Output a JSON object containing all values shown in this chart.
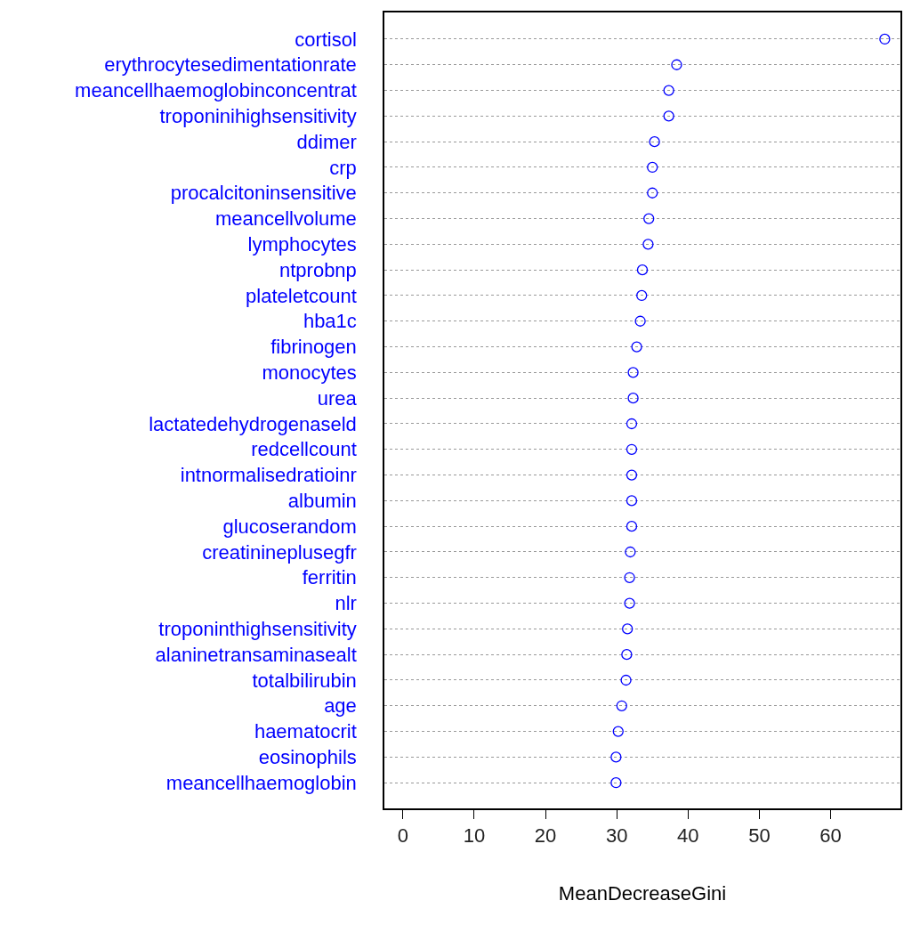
{
  "chart_data": {
    "type": "scatter",
    "xlabel": "MeanDecreaseGini",
    "categories": [
      "cortisol",
      "erythrocytesedimentationrate",
      "meancellhaemoglobinconcentrat",
      "troponinihighsensitivity",
      "ddimer",
      "crp",
      "procalcitoninsensitive",
      "meancellvolume",
      "lymphocytes",
      "ntprobnp",
      "plateletcount",
      "hba1c",
      "fibrinogen",
      "monocytes",
      "urea",
      "lactatedehydrogenaseld",
      "redcellcount",
      "intnormalisedratioinr",
      "albumin",
      "glucoserandom",
      "creatinineplusegfr",
      "ferritin",
      "nlr",
      "troponinthighsensitivity",
      "alaninetransaminasealt",
      "totalbilirubin",
      "age",
      "haematocrit",
      "eosinophils",
      "meancellhaemoglobin"
    ],
    "values": [
      67.6,
      38.4,
      37.3,
      37.3,
      35.3,
      35.0,
      35.0,
      34.5,
      34.4,
      33.6,
      33.5,
      33.3,
      32.8,
      32.3,
      32.3,
      32.1,
      32.1,
      32.1,
      32.1,
      32.1,
      31.9,
      31.8,
      31.8,
      31.5,
      31.4,
      31.3,
      30.7,
      30.2,
      29.9,
      29.9
    ],
    "color": "#0000ff",
    "orientation": "horizontal",
    "marker": "circle",
    "grid": "y",
    "legend": false,
    "xlim": [
      -2.6,
      69.8
    ],
    "xticks": [
      0,
      10,
      20,
      30,
      40,
      50,
      60
    ]
  }
}
